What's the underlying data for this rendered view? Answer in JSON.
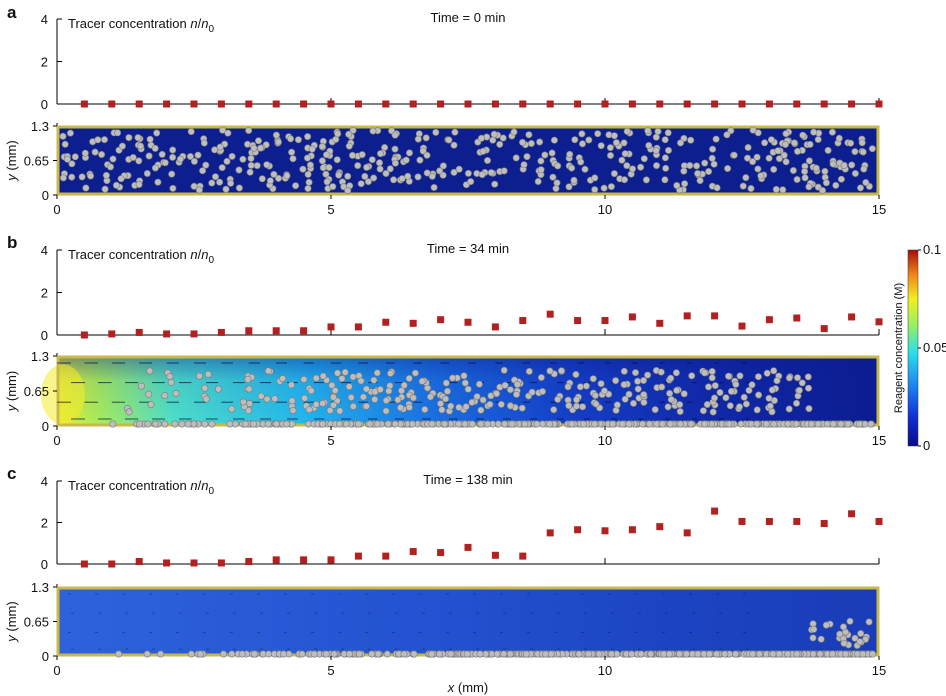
{
  "colors": {
    "marker": "#b32020",
    "particle": "#bdbdbd",
    "particle_edge": "#7a7a7a",
    "frame": "#c9b84a",
    "deep_blue": "#0d1f8f"
  },
  "figure": {
    "xlabel": "x (mm)",
    "y_axis_label": "y (mm)"
  },
  "colorbar": {
    "title": "Reagent concentration (M)",
    "ticks": [
      "0.1",
      "0.05",
      "0"
    ],
    "range": [
      0,
      0.1
    ]
  },
  "panels": [
    {
      "letter": "a",
      "time_label": "Time = 0 min",
      "tracer_label": "Tracer concentration n/n",
      "tracer_sub": "0"
    },
    {
      "letter": "b",
      "time_label": "Time = 34 min",
      "tracer_label": "Tracer concentration n/n",
      "tracer_sub": "0"
    },
    {
      "letter": "c",
      "time_label": "Time = 138 min",
      "tracer_label": "Tracer concentration n/n",
      "tracer_sub": "0"
    }
  ],
  "axes": {
    "x_ticks": [
      "0",
      "5",
      "10",
      "15"
    ],
    "x_tick_values": [
      0,
      5,
      10,
      15
    ],
    "tracer_y_ticks": [
      "4",
      "2",
      "0"
    ],
    "tracer_y_tick_values": [
      4,
      2,
      0
    ],
    "channel_y_ticks": [
      "1.3",
      "0.65",
      "0"
    ],
    "channel_y_tick_values": [
      1.3,
      0.65,
      0
    ],
    "xlim": [
      0,
      15
    ],
    "tracer_ylim": [
      0,
      4
    ],
    "channel_ylim": [
      0,
      1.3
    ]
  },
  "chart_data": [
    {
      "type": "scatter",
      "panel": "a",
      "x": [
        0.5,
        1,
        1.5,
        2,
        2.5,
        3,
        3.5,
        4,
        4.5,
        5,
        5.5,
        6,
        6.5,
        7,
        7.5,
        8,
        8.5,
        9,
        9.5,
        10,
        10.5,
        11,
        11.5,
        12,
        12.5,
        13,
        13.5,
        14,
        14.5,
        15
      ],
      "y": [
        0,
        0,
        0,
        0,
        0,
        0,
        0,
        0,
        0,
        0,
        0,
        0,
        0,
        0,
        0,
        0,
        0,
        0,
        0,
        0,
        0,
        0,
        0,
        0,
        0,
        0,
        0,
        0,
        0,
        0
      ],
      "xlim": [
        0,
        15
      ],
      "ylim": [
        0,
        4
      ]
    },
    {
      "type": "scatter",
      "panel": "b",
      "x": [
        0.5,
        1,
        1.5,
        2,
        2.5,
        3,
        3.5,
        4,
        4.5,
        5,
        5.5,
        6,
        6.5,
        7,
        7.5,
        8,
        8.5,
        9,
        9.5,
        10,
        10.5,
        11,
        11.5,
        12,
        12.5,
        13,
        13.5,
        14,
        14.5,
        15
      ],
      "y": [
        0,
        0.05,
        0.12,
        0.05,
        0.05,
        0.12,
        0.2,
        0.2,
        0.2,
        0.38,
        0.38,
        0.6,
        0.55,
        0.72,
        0.6,
        0.38,
        0.68,
        0.98,
        0.68,
        0.68,
        0.85,
        0.55,
        0.9,
        0.9,
        0.42,
        0.72,
        0.8,
        0.3,
        0.85,
        0.62
      ],
      "xlim": [
        0,
        15
      ],
      "ylim": [
        0,
        4
      ]
    },
    {
      "type": "scatter",
      "panel": "c",
      "x": [
        0.5,
        1,
        1.5,
        2,
        2.5,
        3,
        3.5,
        4,
        4.5,
        5,
        5.5,
        6,
        6.5,
        7,
        7.5,
        8,
        8.5,
        9,
        9.5,
        10,
        10.5,
        11,
        11.5,
        12,
        12.5,
        13,
        13.5,
        14,
        14.5,
        15
      ],
      "y": [
        0,
        0,
        0.12,
        0.05,
        0.05,
        0.05,
        0.12,
        0.2,
        0.2,
        0.2,
        0.38,
        0.38,
        0.6,
        0.55,
        0.8,
        0.42,
        0.38,
        1.5,
        1.65,
        1.6,
        1.65,
        1.8,
        1.5,
        2.55,
        2.05,
        2.05,
        2.05,
        1.95,
        2.42,
        2.05
      ],
      "xlim": [
        0,
        15
      ],
      "ylim": [
        0,
        4
      ]
    }
  ]
}
